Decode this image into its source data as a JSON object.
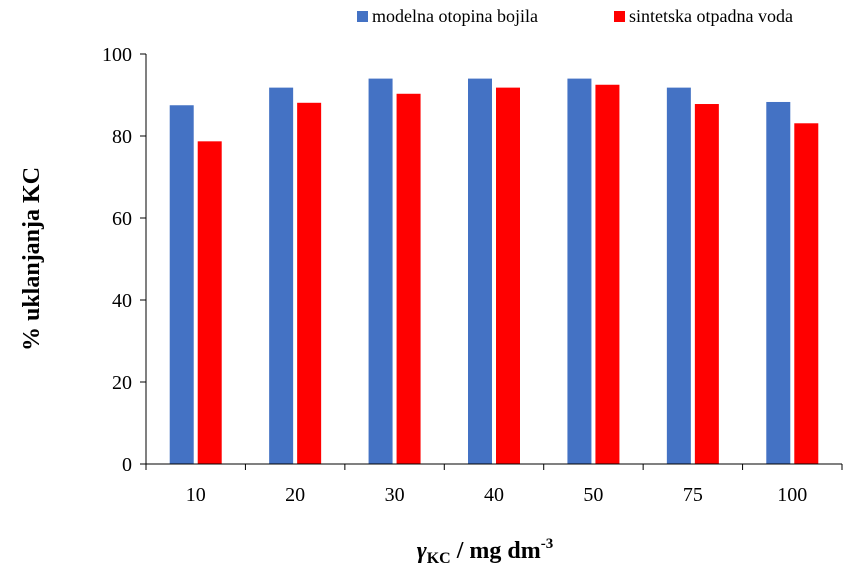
{
  "chart_data": {
    "type": "bar",
    "categories": [
      "10",
      "20",
      "30",
      "40",
      "50",
      "75",
      "100"
    ],
    "series": [
      {
        "name": "modelna otopina bojila",
        "color": "#4472C4",
        "values": [
          87.5,
          91.8,
          94.0,
          94.0,
          94.0,
          91.8,
          88.3
        ]
      },
      {
        "name": "sintetska otpadna voda",
        "color": "#FF0000",
        "values": [
          78.7,
          88.1,
          90.3,
          91.8,
          92.5,
          87.8,
          83.1
        ]
      }
    ],
    "title": "",
    "ylabel": "% uklanjanja KC",
    "xlabel": {
      "symbol": "γ",
      "subscript": "KC",
      "unit_text": " / mg dm",
      "unit_superscript": "-3"
    },
    "ylim": [
      0,
      100
    ],
    "yticks": [
      0,
      20,
      40,
      60,
      80,
      100
    ],
    "ytick_labels": [
      "0",
      "20",
      "40",
      "60",
      "80",
      "100"
    ],
    "grid": false,
    "legend_position": "top-right"
  }
}
